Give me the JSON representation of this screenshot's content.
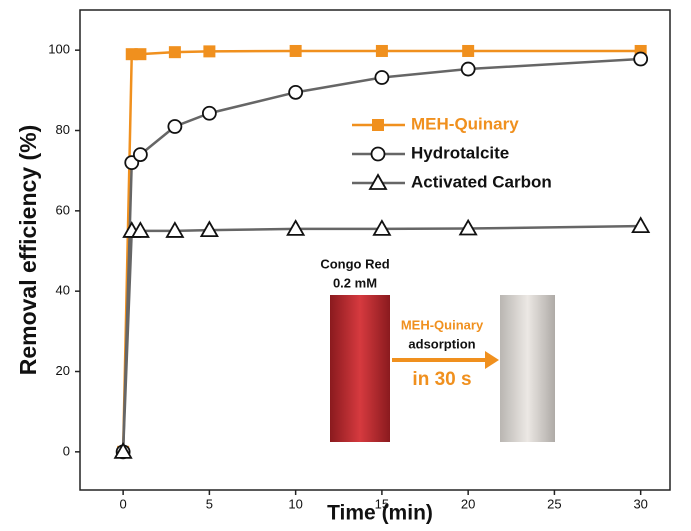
{
  "chart_data": {
    "type": "line",
    "xlabel": "Time (min)",
    "ylabel": "Removal efficiency (%)",
    "xlim": [
      -2.5,
      31.7
    ],
    "xticks": [
      0,
      5,
      10,
      15,
      20,
      25,
      30
    ],
    "ylim": [
      -9.5,
      110
    ],
    "yticks": [
      0,
      20,
      40,
      60,
      80,
      100
    ],
    "x": [
      0,
      0.5,
      1,
      3,
      5,
      10,
      15,
      20,
      30
    ],
    "series": [
      {
        "name": "MEH-Quinary",
        "color": "#f0901e",
        "marker": "square",
        "values": [
          0,
          99,
          99,
          99.5,
          99.7,
          99.8,
          99.8,
          99.8,
          99.8
        ]
      },
      {
        "name": "Hydrotalcite",
        "color": "#666666",
        "marker": "circle",
        "values": [
          0,
          72,
          74,
          81,
          84.3,
          89.5,
          93.2,
          95.3,
          97.8
        ]
      },
      {
        "name": "Activated Carbon",
        "color": "#666666",
        "marker": "triangle",
        "values": [
          0,
          55,
          55,
          55,
          55.2,
          55.5,
          55.5,
          55.6,
          56.2
        ]
      }
    ],
    "annotations": [
      "Congo Red",
      "0.2 mM",
      "MEH-Quinary",
      "adsorption",
      "in 30 s"
    ]
  }
}
